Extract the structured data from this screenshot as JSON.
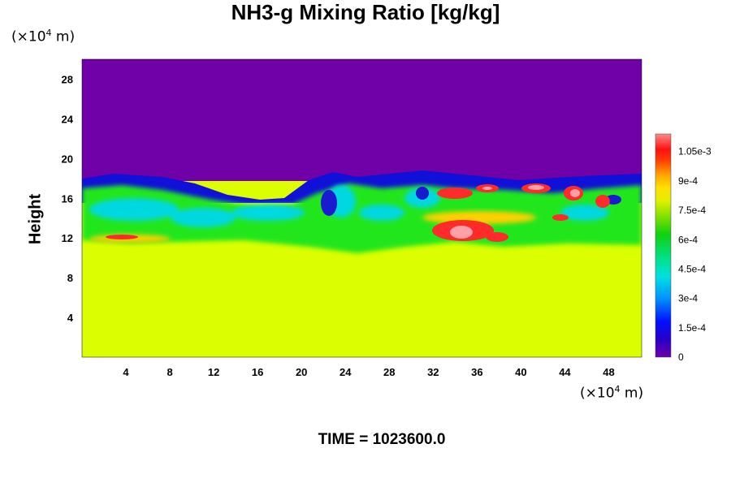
{
  "chart_data": {
    "type": "heatmap",
    "title": "NH3-g Mixing Ratio [kg/kg]",
    "ylabel": "Height",
    "x_unit": "(×10⁴ m)",
    "y_unit": "(×10⁴ m)",
    "footer": "TIME = 1023600.0",
    "xlim": [
      0,
      51
    ],
    "ylim": [
      0,
      30
    ],
    "x_ticks": [
      "4",
      "8",
      "12",
      "16",
      "20",
      "24",
      "28",
      "32",
      "36",
      "40",
      "44",
      "48"
    ],
    "y_ticks": [
      "4",
      "8",
      "12",
      "16",
      "20",
      "24",
      "28"
    ],
    "colorbar": {
      "range": [
        0,
        0.00114
      ],
      "tick_labels": [
        "0",
        "1.5e-4",
        "3e-4",
        "4.5e-4",
        "6e-4",
        "7.5e-4",
        "9e-4",
        "1.05e-3"
      ]
    },
    "regions": [
      {
        "name": "upper layer",
        "value": 0.0,
        "color": "#7000a8"
      },
      {
        "name": "lower layer",
        "value": 0.00078,
        "color": "#dcff00"
      },
      {
        "name": "mixing layer",
        "value": 0.0005,
        "color": "#22e61a"
      },
      {
        "name": "dry pockets",
        "value": 0.0003,
        "color": "#00d8e0"
      },
      {
        "name": "moist pockets",
        "value": 0.001,
        "color": "#ff2a2a"
      }
    ]
  }
}
